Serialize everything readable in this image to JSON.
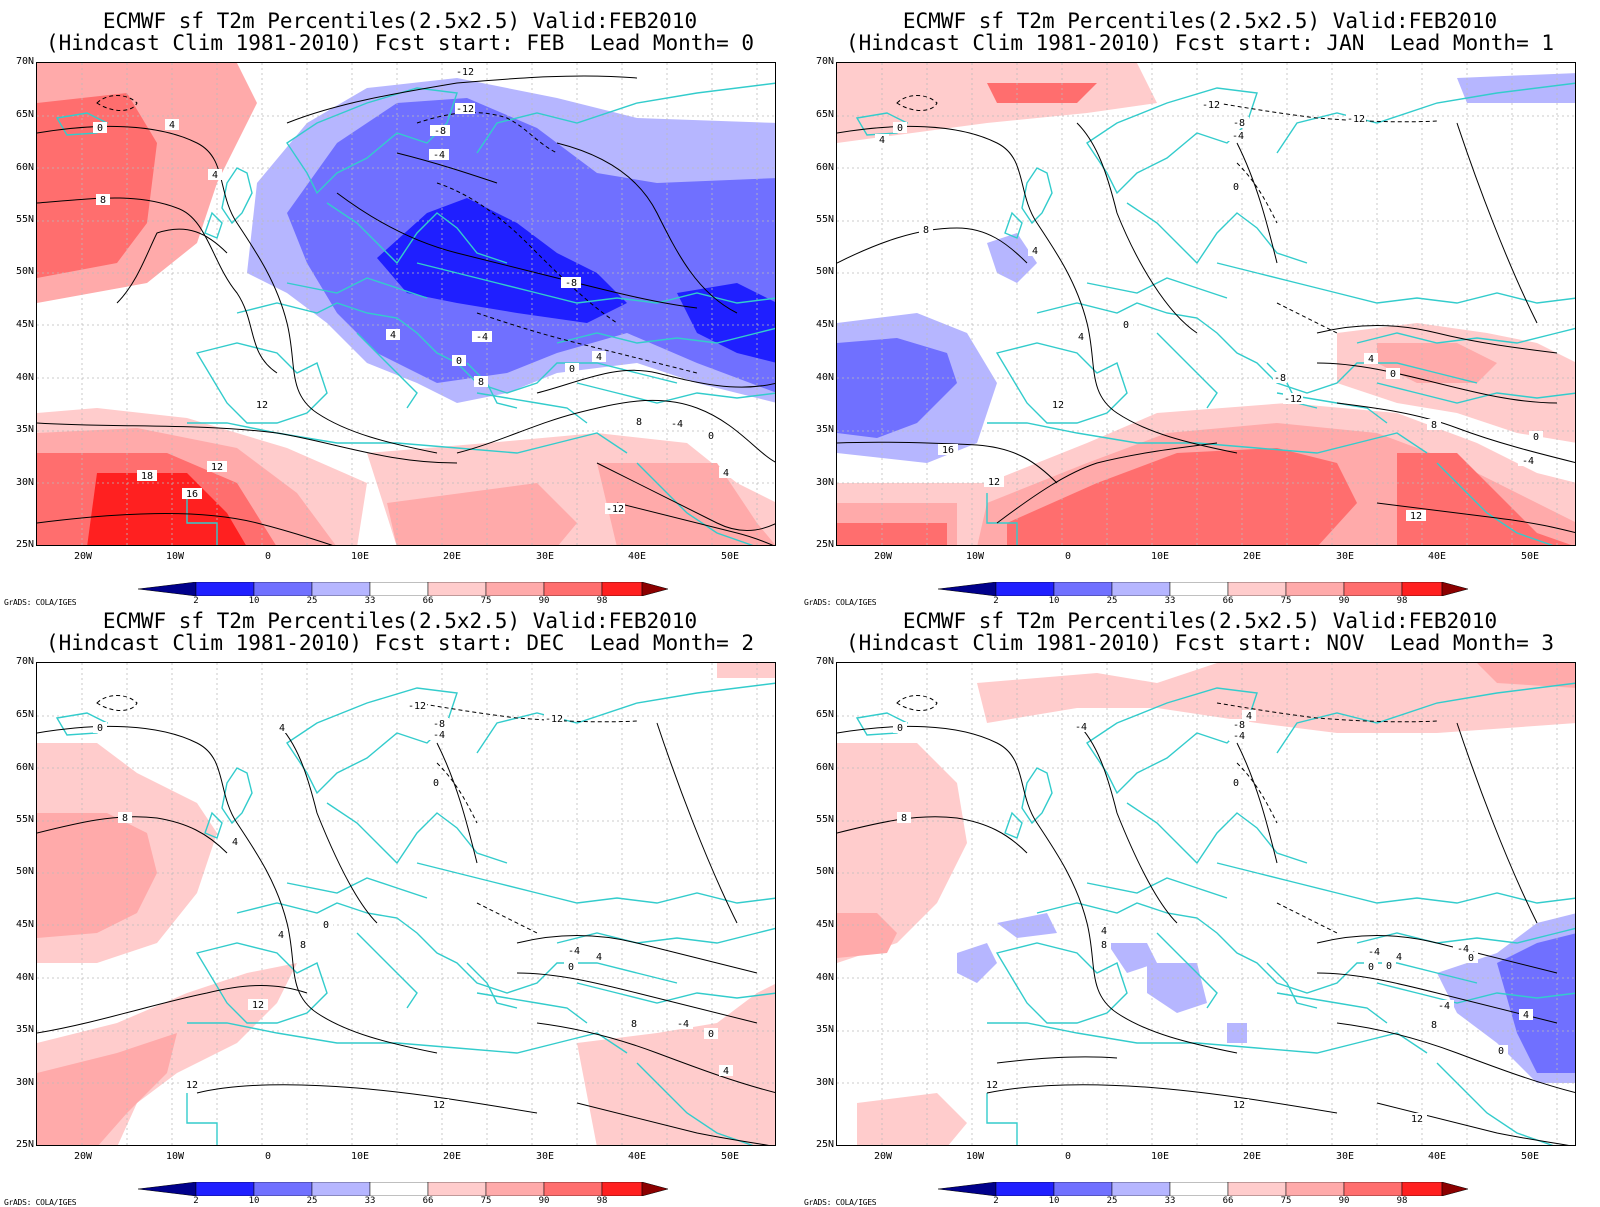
{
  "credit": "GrADS: COLA/IGES",
  "lat_labels": [
    "70N",
    "65N",
    "60N",
    "55N",
    "50N",
    "45N",
    "40N",
    "35N",
    "30N",
    "25N"
  ],
  "lon_labels": [
    "20W",
    "10W",
    "0",
    "10E",
    "20E",
    "30E",
    "40E",
    "50E"
  ],
  "colorbar": {
    "labels": [
      "2",
      "10",
      "25",
      "33",
      "66",
      "75",
      "90",
      "98"
    ],
    "colors": [
      "#00008b",
      "#1f1fff",
      "#7070ff",
      "#b6b6ff",
      "#d8d8ff",
      "#ffffff",
      "#ffcccc",
      "#ffaaaa",
      "#ff6e6e",
      "#ff2020",
      "#8b0000"
    ]
  },
  "panels": [
    {
      "title_line1": "ECMWF sf T2m Percentiles(2.5x2.5) Valid:FEB2010",
      "title_line2": "(Hindcast Clim 1981-2010) Fcst start: FEB  Lead Month= 0",
      "contour_labels": [
        "-12",
        "-12",
        "0",
        "4",
        "-8",
        "-4",
        "4",
        "8",
        "-8",
        "-4",
        "4",
        "0",
        "8",
        "12",
        "18",
        "16",
        "12",
        "-4",
        "0",
        "4",
        "8",
        "0",
        "4",
        "-12"
      ]
    },
    {
      "title_line1": "ECMWF sf T2m Percentiles(2.5x2.5) Valid:FEB2010",
      "title_line2": "(Hindcast Clim 1981-2010) Fcst start: JAN  Lead Month= 1",
      "contour_labels": [
        "-12",
        "-12",
        "0",
        "4",
        "-8",
        "-4",
        "0",
        "8",
        "4",
        "0",
        "4",
        "12",
        "16",
        "12",
        "-8",
        "-12",
        "0",
        "4",
        "8",
        "-4",
        "0",
        "12"
      ]
    },
    {
      "title_line1": "ECMWF sf T2m Percentiles(2.5x2.5) Valid:FEB2010",
      "title_line2": "(Hindcast Clim 1981-2010) Fcst start: DEC  Lead Month= 2",
      "contour_labels": [
        "-12",
        "-12",
        "0",
        "4",
        "-8",
        "-4",
        "0",
        "8",
        "4",
        "4",
        "0",
        "8",
        "12",
        "12",
        "-4",
        "0",
        "4",
        "12",
        "8",
        "-4",
        "0",
        "4"
      ]
    },
    {
      "title_line1": "ECMWF sf T2m Percentiles(2.5x2.5) Valid:FEB2010",
      "title_line2": "(Hindcast Clim 1981-2010) Fcst start: NOV  Lead Month= 3",
      "contour_labels": [
        "-4",
        "0",
        "4",
        "-8",
        "-4",
        "0",
        "8",
        "4",
        "8",
        "12",
        "12",
        "-4",
        "0",
        "4",
        "8",
        "0",
        "4",
        "12",
        "-4",
        "0",
        "-4",
        "0"
      ]
    }
  ]
}
